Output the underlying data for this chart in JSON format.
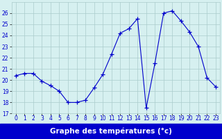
{
  "x": [
    0,
    1,
    2,
    3,
    4,
    5,
    6,
    7,
    8,
    9,
    10,
    11,
    12,
    13,
    14,
    15,
    16,
    17,
    18,
    19,
    20,
    21,
    22,
    23
  ],
  "y": [
    20.4,
    20.6,
    20.6,
    19.9,
    19.5,
    19.0,
    18.0,
    18.0,
    18.2,
    19.3,
    20.5,
    22.3,
    24.2,
    24.6,
    25.5,
    17.5,
    21.5,
    26.0,
    26.2,
    25.3,
    24.3,
    23.0,
    20.2,
    19.4
  ],
  "line_color": "#0000cc",
  "marker": "+",
  "marker_size": 4,
  "bg_color": "#d6f0f0",
  "grid_color": "#aacccc",
  "ylim": [
    17,
    27
  ],
  "xlim": [
    -0.5,
    23.5
  ],
  "yticks": [
    17,
    18,
    19,
    20,
    21,
    22,
    23,
    24,
    25,
    26
  ],
  "xticks": [
    0,
    1,
    2,
    3,
    4,
    5,
    6,
    7,
    8,
    9,
    10,
    11,
    12,
    13,
    14,
    15,
    16,
    17,
    18,
    19,
    20,
    21,
    22,
    23
  ],
  "tick_fontsize": 5.5,
  "xlabel": "Graphe des températures (°c)",
  "xlabel_fontsize": 7.5,
  "xlabel_color": "#ffffff",
  "xlabel_bg": "#0000cc",
  "label_bar_color": "#0000cc"
}
